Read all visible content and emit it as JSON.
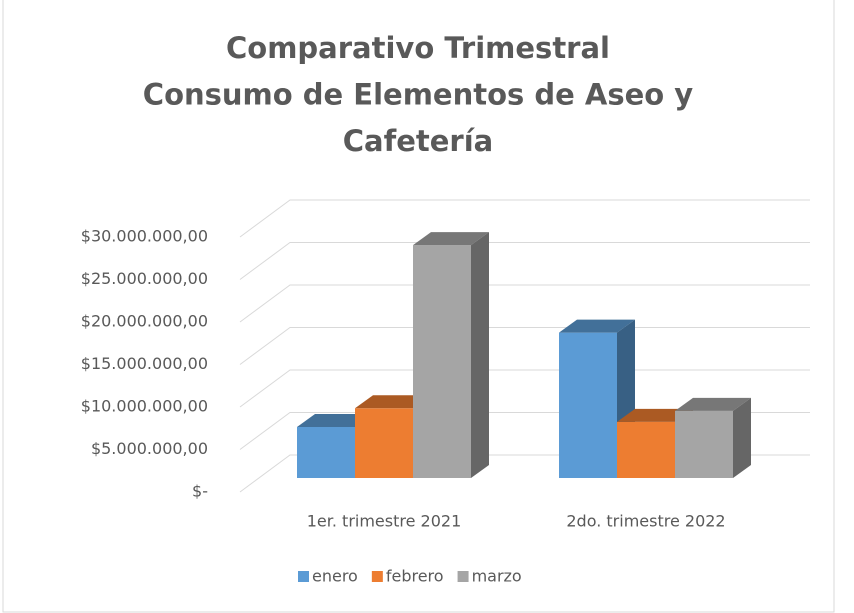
{
  "chart_data": {
    "type": "bar3d",
    "title": [
      "Comparativo Trimestral",
      "Consumo de Elementos de Aseo y",
      "Cafetería"
    ],
    "categories": [
      "1er. trimestre 2021",
      "2do. trimestre 2022"
    ],
    "series": [
      {
        "name": "enero",
        "color": "#5b9bd5",
        "values": [
          6000000,
          17100000
        ]
      },
      {
        "name": "febrero",
        "color": "#ed7d31",
        "values": [
          8200000,
          6600000
        ]
      },
      {
        "name": "marzo",
        "color": "#a5a5a5",
        "values": [
          27400000,
          7900000
        ]
      }
    ],
    "ylim": [
      0,
      30000000
    ],
    "yticks": [
      {
        "value": 0,
        "label": "$-"
      },
      {
        "value": 5000000,
        "label": "$5.000.000,00"
      },
      {
        "value": 10000000,
        "label": "$10.000.000,00"
      },
      {
        "value": 15000000,
        "label": "$15.000.000,00"
      },
      {
        "value": 20000000,
        "label": "$20.000.000,00"
      },
      {
        "value": 25000000,
        "label": "$25.000.000,00"
      },
      {
        "value": 30000000,
        "label": "$30.000.000,00"
      }
    ],
    "grid": true,
    "legend": "bottom"
  }
}
